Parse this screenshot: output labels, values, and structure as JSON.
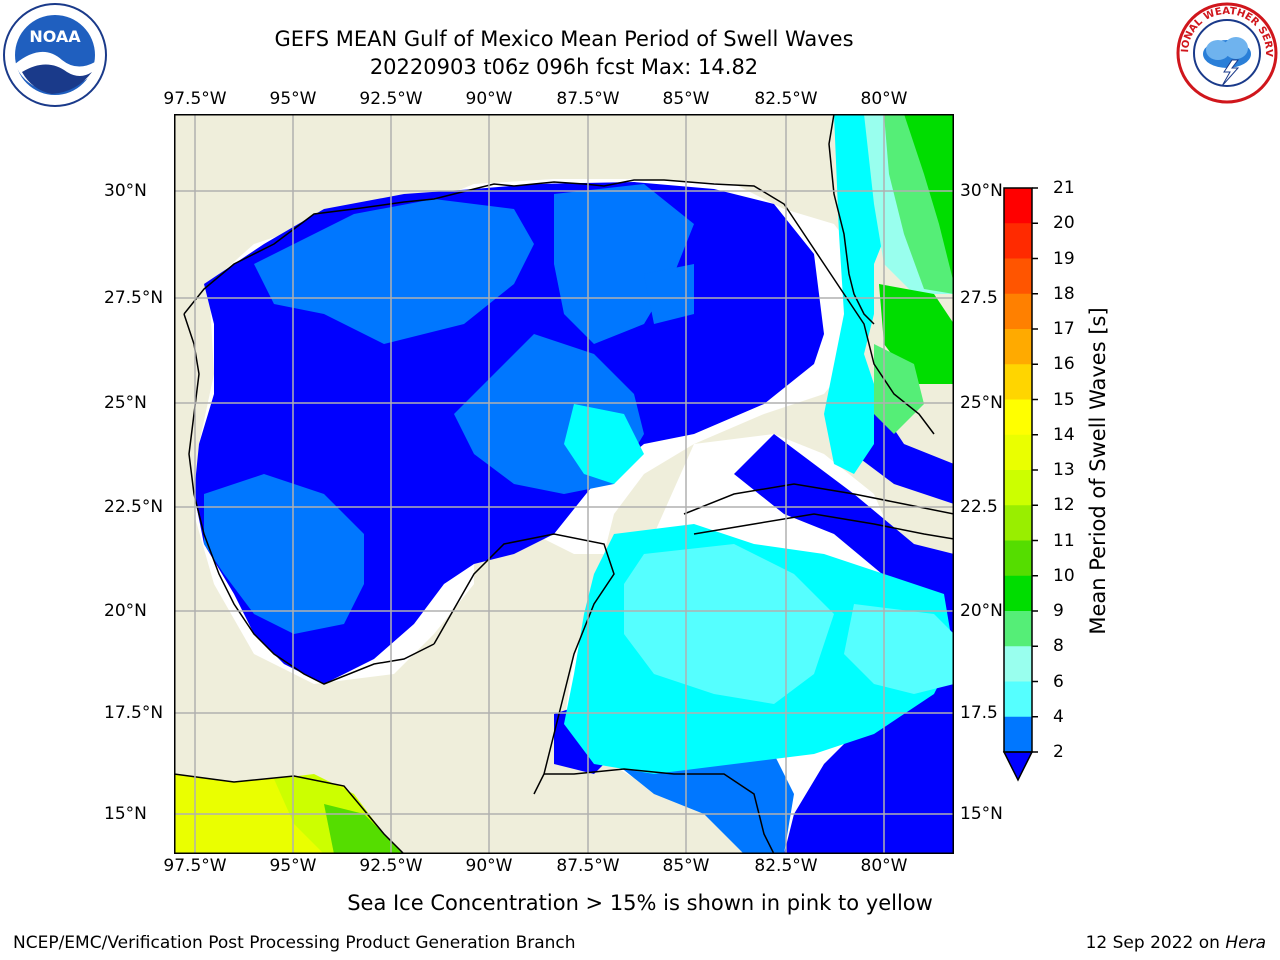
{
  "header": {
    "title_line1": "GEFS MEAN Gulf of Mexico Mean Period of Swell Waves",
    "title_line2": "20220903 t06z 096h fcst   Max: 14.82"
  },
  "axes": {
    "lon_ticks": [
      "97.5°W",
      "95°W",
      "92.5°W",
      "90°W",
      "87.5°W",
      "85°W",
      "82.5°W",
      "80°W"
    ],
    "lat_ticks_left": [
      "30°N",
      "27.5°N",
      "25°N",
      "22.5°N",
      "20°N",
      "17.5°N",
      "15°N"
    ],
    "lat_ticks_right": [
      "30°N",
      "27.5",
      "25°N",
      "22.5",
      "20°N",
      "17.5",
      "15°N"
    ]
  },
  "colorbar": {
    "label": "Mean Period of Swell Waves [s]",
    "ticks": [
      "21",
      "20",
      "19",
      "18",
      "17",
      "16",
      "15",
      "14",
      "13",
      "12",
      "11",
      "10",
      "9",
      "8",
      "6",
      "4",
      "2"
    ],
    "colors": [
      "#ff0000",
      "#ff2a00",
      "#ff5500",
      "#ff8000",
      "#ffaa00",
      "#ffd500",
      "#ffff00",
      "#eaff00",
      "#ccff00",
      "#99ee00",
      "#55dd00",
      "#00dd00",
      "#55ee77",
      "#99ffee",
      "#55ffff",
      "#00ffff",
      "#0077ff",
      "#0000ff"
    ]
  },
  "map_colors": {
    "land": "#efeedb",
    "missing": "#ffffff",
    "grid": "#b0b0b0"
  },
  "footer": {
    "note": "Sea Ice Concentration > 15% is shown in pink to yellow",
    "credit": "NCEP/EMC/Verification Post Processing Product Generation Branch",
    "date": "12 Sep 2022",
    "on": "on",
    "host": "Hera"
  },
  "logos": {
    "noaa": "NOAA",
    "nws": "NATIONAL WEATHER SERVICE"
  }
}
